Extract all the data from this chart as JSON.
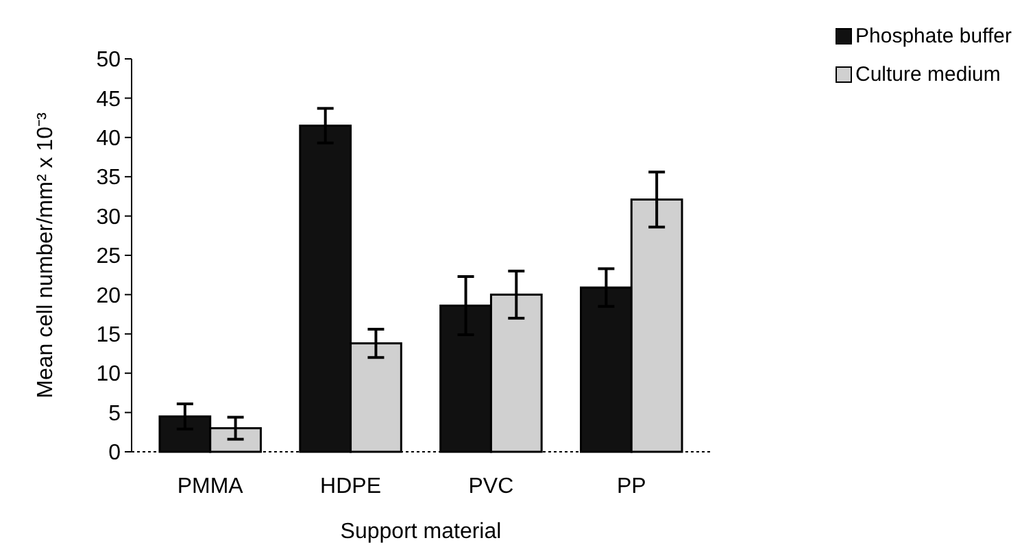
{
  "chart_data": {
    "type": "bar",
    "xlabel": "Support material",
    "ylabel": "Mean cell number/mm² x 10⁻³",
    "categories": [
      "PMMA",
      "HDPE",
      "PVC",
      "PP"
    ],
    "series": [
      {
        "name": "Phosphate buffer",
        "color": "#111111",
        "values": [
          4.5,
          41.5,
          18.6,
          20.9
        ],
        "errors": [
          1.6,
          2.2,
          3.7,
          2.4
        ]
      },
      {
        "name": "Culture medium",
        "color": "#d0d0d0",
        "values": [
          3.0,
          13.8,
          20.0,
          32.1
        ],
        "errors": [
          1.4,
          1.8,
          3.0,
          3.5
        ]
      }
    ],
    "ylim": [
      0,
      50
    ],
    "yticks": [
      0,
      5,
      10,
      15,
      20,
      25,
      30,
      35,
      40,
      45,
      50
    ],
    "grid": false,
    "legend": "top right"
  }
}
